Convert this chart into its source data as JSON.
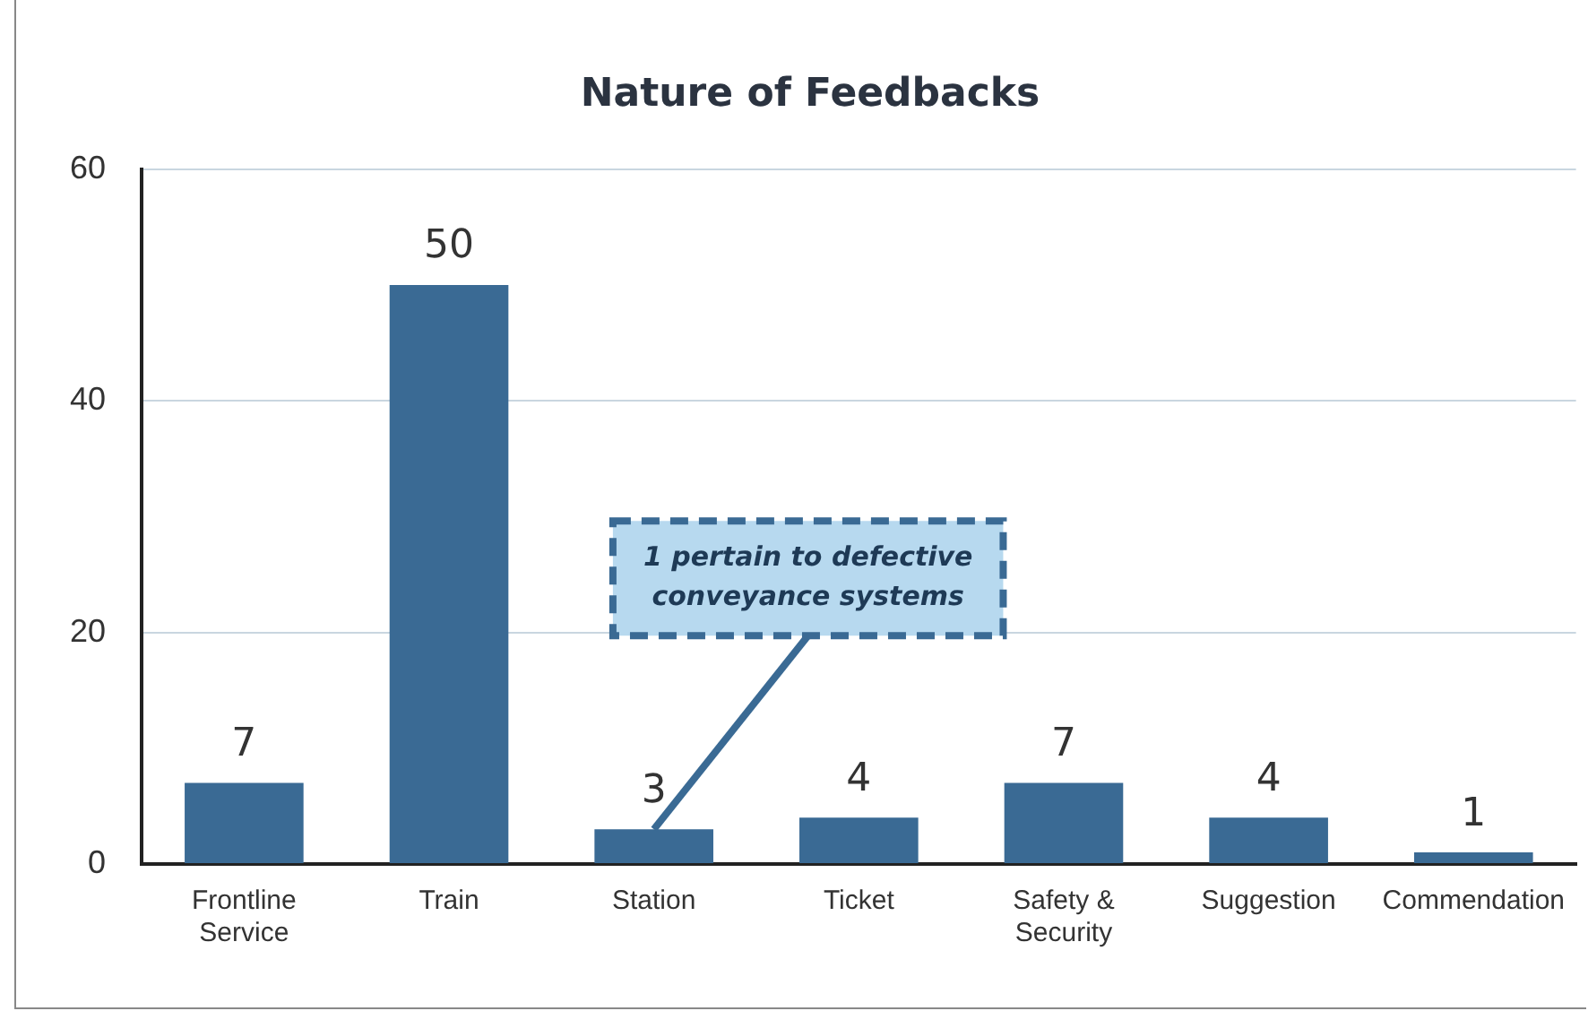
{
  "chart_data": {
    "type": "bar",
    "title": "Nature of Feedbacks",
    "categories": [
      "Frontline Service",
      "Train",
      "Station",
      "Ticket",
      "Safety & Security",
      "Suggestion",
      "Commendation"
    ],
    "values": [
      7,
      50,
      3,
      4,
      7,
      4,
      1
    ],
    "color": "#3a6a94",
    "ylim": [
      0,
      60
    ],
    "yticks": [
      0,
      20,
      40,
      60
    ],
    "grid": "y",
    "data_labels": true,
    "legend": false,
    "annotations": [
      {
        "text": "1 pertain to defective conveyance systems",
        "x": "Station",
        "y": 3
      }
    ]
  }
}
